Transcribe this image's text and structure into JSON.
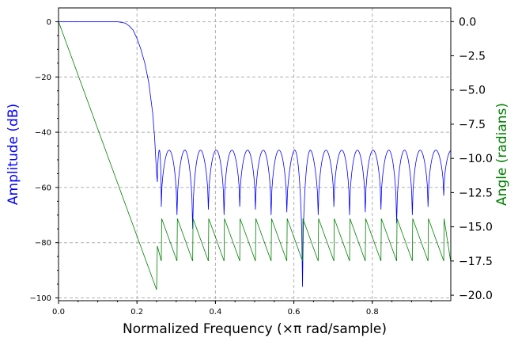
{
  "chart_data": {
    "type": "line",
    "title": "",
    "xlabel": "Normalized Frequency (×π rad/sample)",
    "ylabel_left": "Amplitude (dB)",
    "ylabel_right": "Angle (radians)",
    "xlim": [
      0.0,
      1.0
    ],
    "ylim_left": [
      -101,
      5
    ],
    "ylim_right": [
      -20.4,
      1.0
    ],
    "grid": true,
    "x_ticks": [
      "0.0",
      "0.2",
      "0.4",
      "0.6",
      "0.8"
    ],
    "y_left_ticks": [
      "0",
      "−20",
      "−40",
      "−60",
      "−80",
      "−100"
    ],
    "y_right_ticks": [
      "0.0",
      "−2.5",
      "−5.0",
      "−7.5",
      "−10.0",
      "−12.5",
      "−15.0",
      "−17.5",
      "−20.0"
    ],
    "series": [
      {
        "axis": "left",
        "color": "#0000ff",
        "x": [
          0.0,
          0.1,
          0.15,
          0.17,
          0.18,
          0.19,
          0.2,
          0.21,
          0.22,
          0.23,
          0.24,
          0.245,
          0.25,
          0.252
        ],
        "y": [
          0,
          0,
          0,
          -0.5,
          -1.5,
          -3,
          -6,
          -10,
          -15,
          -22,
          -33,
          -42,
          -55,
          -58
        ],
        "stopband": {
          "nulls": [
            0.252,
            0.262,
            0.302,
            0.342,
            0.382,
            0.422,
            0.462,
            0.502,
            0.542,
            0.582,
            0.622,
            0.662,
            0.702,
            0.742,
            0.782,
            0.822,
            0.862,
            0.902,
            0.942,
            0.982
          ],
          "null_depths": [
            -58,
            -67,
            -70,
            -75,
            -68,
            -70,
            -67,
            -68,
            -70,
            -69,
            -96,
            -70,
            -67,
            -70,
            -69,
            -68,
            -73,
            -70,
            -67,
            -63
          ],
          "lobe_peak": -46.5
        }
      },
      {
        "axis": "right",
        "color": "#008000",
        "x": [
          0.0,
          0.25,
          0.252,
          0.262,
          0.263,
          0.302,
          0.303,
          0.342,
          0.343,
          0.382,
          0.383,
          0.422,
          0.423,
          0.462,
          0.463,
          0.502,
          0.503,
          0.542,
          0.543,
          0.582,
          0.583,
          0.622,
          0.623,
          0.662,
          0.663,
          0.702,
          0.703,
          0.742,
          0.743,
          0.782,
          0.783,
          0.822,
          0.823,
          0.862,
          0.863,
          0.902,
          0.903,
          0.942,
          0.943,
          0.982,
          0.983,
          1.0
        ],
        "y": [
          0,
          -19.6,
          -16.4,
          -17.5,
          -14.4,
          -17.5,
          -14.4,
          -17.5,
          -14.4,
          -17.5,
          -14.4,
          -17.5,
          -14.4,
          -17.5,
          -14.4,
          -17.5,
          -14.4,
          -17.5,
          -14.4,
          -17.5,
          -14.4,
          -17.5,
          -14.4,
          -17.5,
          -14.4,
          -17.5,
          -14.4,
          -17.5,
          -14.4,
          -17.5,
          -14.4,
          -17.5,
          -14.4,
          -17.5,
          -14.4,
          -17.5,
          -14.4,
          -17.5,
          -14.4,
          -17.5,
          -14.4,
          -17.6
        ]
      }
    ]
  }
}
